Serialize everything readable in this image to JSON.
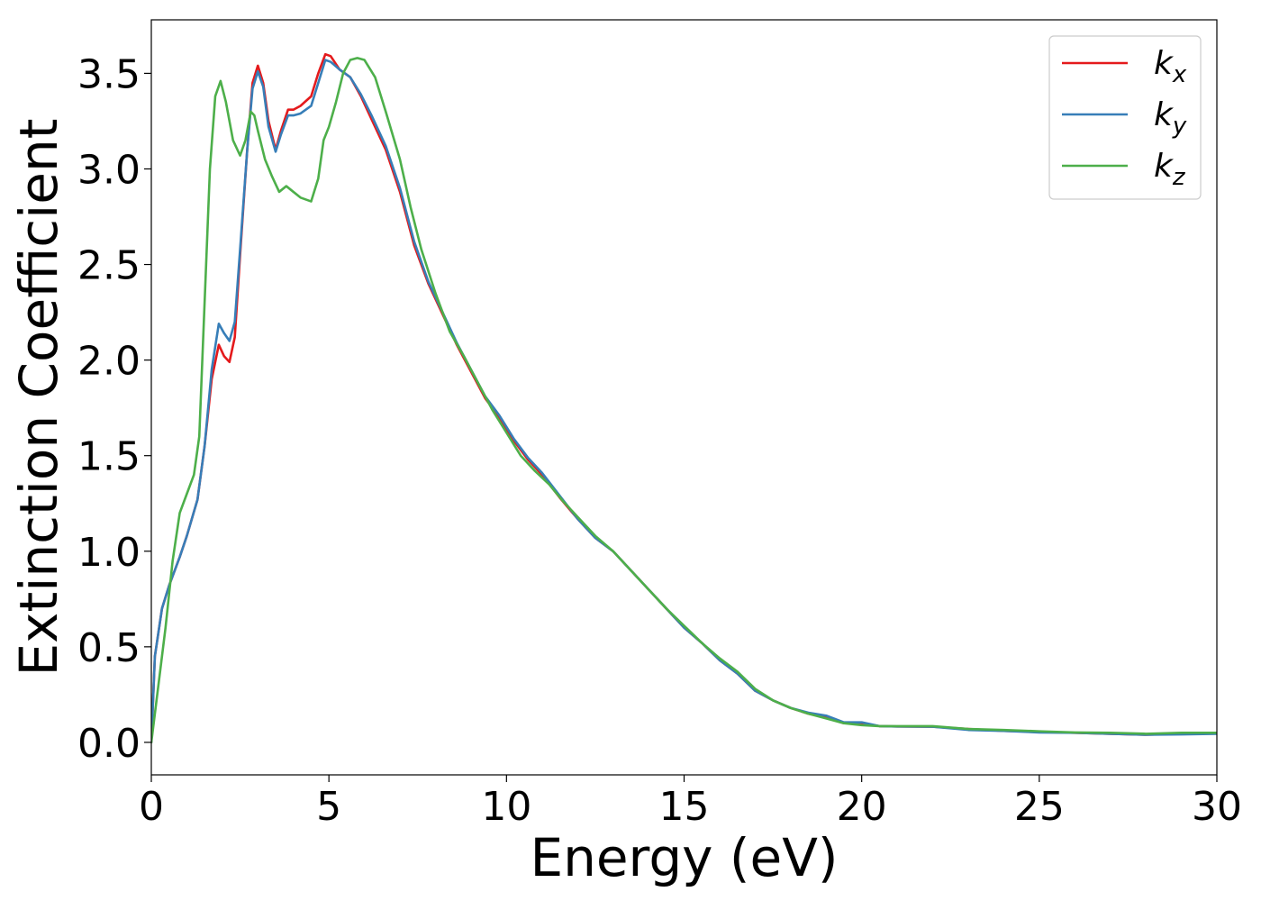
{
  "chart_data": {
    "type": "line",
    "xlabel": "Energy (eV)",
    "ylabel": "Extinction Coefficient",
    "xlim": [
      0,
      30
    ],
    "ylim": [
      -0.17,
      3.78
    ],
    "x_ticks": [
      0,
      5,
      10,
      15,
      20,
      25,
      30
    ],
    "x_tick_labels": [
      "0",
      "5",
      "10",
      "15",
      "20",
      "25",
      "30"
    ],
    "y_ticks": [
      0.0,
      0.5,
      1.0,
      1.5,
      2.0,
      2.5,
      3.0,
      3.5
    ],
    "y_tick_labels": [
      "0.0",
      "0.5",
      "1.0",
      "1.5",
      "2.0",
      "2.5",
      "3.0",
      "3.5"
    ],
    "grid": false,
    "legend_position": "top-right",
    "series": [
      {
        "key": "kx",
        "name": "k",
        "subscript": "x",
        "color": "#e41a1c",
        "points": [
          [
            0,
            0
          ],
          [
            0.1,
            0.45
          ],
          [
            0.3,
            0.7
          ],
          [
            0.5,
            0.82
          ],
          [
            0.8,
            0.97
          ],
          [
            1.0,
            1.08
          ],
          [
            1.3,
            1.27
          ],
          [
            1.5,
            1.55
          ],
          [
            1.7,
            1.9
          ],
          [
            1.9,
            2.08
          ],
          [
            2.05,
            2.02
          ],
          [
            2.2,
            1.99
          ],
          [
            2.35,
            2.12
          ],
          [
            2.5,
            2.55
          ],
          [
            2.7,
            3.1
          ],
          [
            2.85,
            3.45
          ],
          [
            3.0,
            3.54
          ],
          [
            3.15,
            3.45
          ],
          [
            3.3,
            3.25
          ],
          [
            3.5,
            3.1
          ],
          [
            3.65,
            3.2
          ],
          [
            3.85,
            3.31
          ],
          [
            4.0,
            3.31
          ],
          [
            4.2,
            3.33
          ],
          [
            4.5,
            3.38
          ],
          [
            4.7,
            3.5
          ],
          [
            4.9,
            3.6
          ],
          [
            5.05,
            3.59
          ],
          [
            5.3,
            3.52
          ],
          [
            5.6,
            3.48
          ],
          [
            5.9,
            3.38
          ],
          [
            6.2,
            3.26
          ],
          [
            6.6,
            3.1
          ],
          [
            7.0,
            2.88
          ],
          [
            7.4,
            2.6
          ],
          [
            7.8,
            2.4
          ],
          [
            8.2,
            2.24
          ],
          [
            8.6,
            2.08
          ],
          [
            9.0,
            1.94
          ],
          [
            9.4,
            1.8
          ],
          [
            9.8,
            1.7
          ],
          [
            10.2,
            1.58
          ],
          [
            10.6,
            1.48
          ],
          [
            11.0,
            1.4
          ],
          [
            11.5,
            1.28
          ],
          [
            12.0,
            1.17
          ],
          [
            12.5,
            1.07
          ],
          [
            13.0,
            1.0
          ],
          [
            13.5,
            0.9
          ],
          [
            14.0,
            0.8
          ],
          [
            14.5,
            0.7
          ],
          [
            15.0,
            0.6
          ],
          [
            15.5,
            0.52
          ],
          [
            16.0,
            0.43
          ],
          [
            16.5,
            0.36
          ],
          [
            17.0,
            0.27
          ],
          [
            17.5,
            0.22
          ],
          [
            18.0,
            0.18
          ],
          [
            18.5,
            0.15
          ],
          [
            19.0,
            0.13
          ],
          [
            19.5,
            0.1
          ],
          [
            20.0,
            0.1
          ],
          [
            20.5,
            0.085
          ],
          [
            21.0,
            0.083
          ],
          [
            22.0,
            0.082
          ],
          [
            23.0,
            0.07
          ],
          [
            24.0,
            0.06
          ],
          [
            25.0,
            0.055
          ],
          [
            26.0,
            0.05
          ],
          [
            27.0,
            0.045
          ],
          [
            28.0,
            0.04
          ],
          [
            29.0,
            0.045
          ],
          [
            30.0,
            0.05
          ]
        ]
      },
      {
        "key": "ky",
        "name": "k",
        "subscript": "y",
        "color": "#377eb8",
        "points": [
          [
            0,
            0
          ],
          [
            0.1,
            0.45
          ],
          [
            0.3,
            0.7
          ],
          [
            0.5,
            0.82
          ],
          [
            0.8,
            0.97
          ],
          [
            1.0,
            1.08
          ],
          [
            1.3,
            1.27
          ],
          [
            1.5,
            1.55
          ],
          [
            1.7,
            1.95
          ],
          [
            1.9,
            2.19
          ],
          [
            2.05,
            2.14
          ],
          [
            2.2,
            2.1
          ],
          [
            2.35,
            2.2
          ],
          [
            2.5,
            2.58
          ],
          [
            2.7,
            3.1
          ],
          [
            2.85,
            3.42
          ],
          [
            3.0,
            3.51
          ],
          [
            3.15,
            3.43
          ],
          [
            3.3,
            3.22
          ],
          [
            3.5,
            3.09
          ],
          [
            3.65,
            3.18
          ],
          [
            3.85,
            3.28
          ],
          [
            4.0,
            3.28
          ],
          [
            4.2,
            3.29
          ],
          [
            4.5,
            3.33
          ],
          [
            4.7,
            3.45
          ],
          [
            4.9,
            3.57
          ],
          [
            5.05,
            3.56
          ],
          [
            5.3,
            3.52
          ],
          [
            5.6,
            3.48
          ],
          [
            5.9,
            3.39
          ],
          [
            6.2,
            3.28
          ],
          [
            6.6,
            3.12
          ],
          [
            7.0,
            2.9
          ],
          [
            7.4,
            2.62
          ],
          [
            7.8,
            2.41
          ],
          [
            8.2,
            2.25
          ],
          [
            8.6,
            2.09
          ],
          [
            9.0,
            1.95
          ],
          [
            9.4,
            1.81
          ],
          [
            9.8,
            1.71
          ],
          [
            10.2,
            1.59
          ],
          [
            10.6,
            1.49
          ],
          [
            11.0,
            1.41
          ],
          [
            11.5,
            1.29
          ],
          [
            12.0,
            1.17
          ],
          [
            12.5,
            1.07
          ],
          [
            13.0,
            1.0
          ],
          [
            13.5,
            0.9
          ],
          [
            14.0,
            0.8
          ],
          [
            14.5,
            0.7
          ],
          [
            15.0,
            0.6
          ],
          [
            15.5,
            0.52
          ],
          [
            16.0,
            0.43
          ],
          [
            16.5,
            0.36
          ],
          [
            17.0,
            0.27
          ],
          [
            17.5,
            0.22
          ],
          [
            18.0,
            0.18
          ],
          [
            18.5,
            0.155
          ],
          [
            19.0,
            0.14
          ],
          [
            19.5,
            0.105
          ],
          [
            20.0,
            0.105
          ],
          [
            20.5,
            0.085
          ],
          [
            21.0,
            0.083
          ],
          [
            22.0,
            0.082
          ],
          [
            23.0,
            0.065
          ],
          [
            24.0,
            0.06
          ],
          [
            25.0,
            0.052
          ],
          [
            26.0,
            0.05
          ],
          [
            27.0,
            0.045
          ],
          [
            28.0,
            0.04
          ],
          [
            29.0,
            0.042
          ],
          [
            30.0,
            0.045
          ]
        ]
      },
      {
        "key": "kz",
        "name": "k",
        "subscript": "z",
        "color": "#4daf4a",
        "points": [
          [
            0,
            0
          ],
          [
            0.2,
            0.3
          ],
          [
            0.4,
            0.6
          ],
          [
            0.6,
            0.95
          ],
          [
            0.8,
            1.2
          ],
          [
            1.0,
            1.3
          ],
          [
            1.2,
            1.4
          ],
          [
            1.35,
            1.6
          ],
          [
            1.5,
            2.3
          ],
          [
            1.65,
            3.0
          ],
          [
            1.8,
            3.38
          ],
          [
            1.95,
            3.46
          ],
          [
            2.1,
            3.35
          ],
          [
            2.3,
            3.15
          ],
          [
            2.5,
            3.07
          ],
          [
            2.65,
            3.15
          ],
          [
            2.8,
            3.3
          ],
          [
            2.9,
            3.28
          ],
          [
            3.0,
            3.2
          ],
          [
            3.2,
            3.05
          ],
          [
            3.4,
            2.96
          ],
          [
            3.6,
            2.88
          ],
          [
            3.8,
            2.91
          ],
          [
            4.0,
            2.88
          ],
          [
            4.2,
            2.85
          ],
          [
            4.5,
            2.83
          ],
          [
            4.7,
            2.95
          ],
          [
            4.85,
            3.15
          ],
          [
            5.0,
            3.22
          ],
          [
            5.2,
            3.35
          ],
          [
            5.4,
            3.5
          ],
          [
            5.6,
            3.57
          ],
          [
            5.8,
            3.58
          ],
          [
            6.0,
            3.57
          ],
          [
            6.3,
            3.48
          ],
          [
            6.6,
            3.3
          ],
          [
            7.0,
            3.05
          ],
          [
            7.3,
            2.8
          ],
          [
            7.6,
            2.58
          ],
          [
            8.0,
            2.35
          ],
          [
            8.4,
            2.15
          ],
          [
            8.8,
            2.02
          ],
          [
            9.2,
            1.88
          ],
          [
            9.6,
            1.74
          ],
          [
            10.0,
            1.62
          ],
          [
            10.4,
            1.5
          ],
          [
            10.8,
            1.42
          ],
          [
            11.2,
            1.35
          ],
          [
            11.6,
            1.26
          ],
          [
            12.0,
            1.18
          ],
          [
            12.5,
            1.08
          ],
          [
            13.0,
            1.0
          ],
          [
            13.5,
            0.9
          ],
          [
            14.0,
            0.8
          ],
          [
            14.5,
            0.7
          ],
          [
            15.0,
            0.61
          ],
          [
            15.5,
            0.52
          ],
          [
            16.0,
            0.44
          ],
          [
            16.5,
            0.37
          ],
          [
            17.0,
            0.28
          ],
          [
            17.5,
            0.22
          ],
          [
            18.0,
            0.18
          ],
          [
            18.5,
            0.15
          ],
          [
            19.0,
            0.125
          ],
          [
            19.5,
            0.1
          ],
          [
            20.0,
            0.09
          ],
          [
            20.5,
            0.085
          ],
          [
            21.0,
            0.085
          ],
          [
            22.0,
            0.085
          ],
          [
            23.0,
            0.07
          ],
          [
            24.0,
            0.065
          ],
          [
            25.0,
            0.058
          ],
          [
            26.0,
            0.052
          ],
          [
            27.0,
            0.05
          ],
          [
            28.0,
            0.045
          ],
          [
            29.0,
            0.05
          ],
          [
            30.0,
            0.05
          ]
        ]
      }
    ]
  }
}
